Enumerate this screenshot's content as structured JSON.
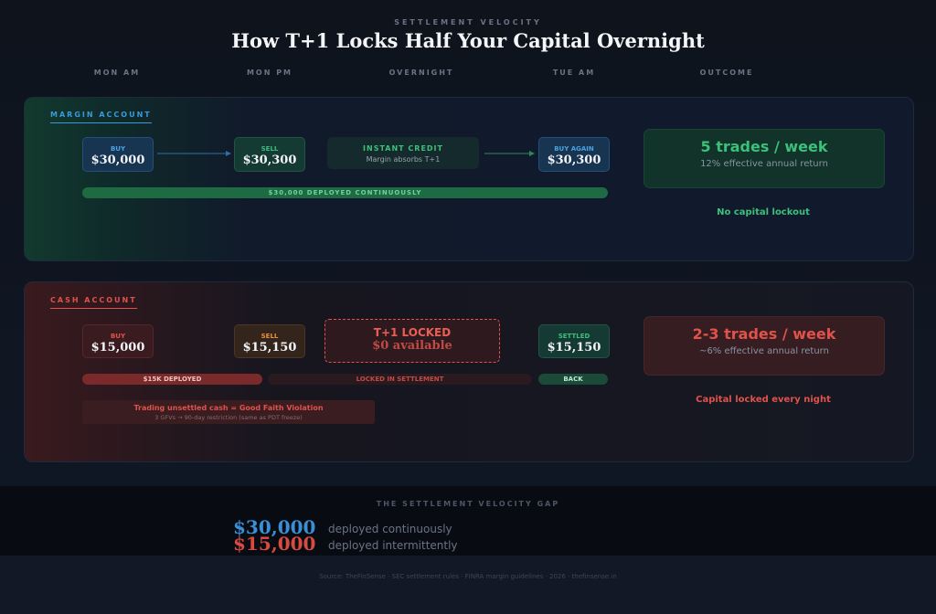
{
  "header": {
    "eyebrow": "SETTLEMENT VELOCITY",
    "title": "How T+1 Locks Half Your Capital Overnight"
  },
  "columns": [
    "MON AM",
    "MON PM",
    "OVERNIGHT",
    "TUE AM",
    "OUTCOME"
  ],
  "margin": {
    "label": "MARGIN ACCOUNT",
    "steps": [
      {
        "label": "BUY",
        "amount": "$30,000"
      },
      {
        "label": "SELL",
        "amount": "$30,300"
      },
      {
        "label": "INSTANT CREDIT",
        "detail": "Margin absorbs T+1"
      },
      {
        "label": "BUY AGAIN",
        "amount": "$30,300"
      }
    ],
    "bar": "$30,000 DEPLOYED CONTINUOUSLY",
    "outcome": {
      "headline": "5 trades / week",
      "detail": "12% effective annual return"
    },
    "note": "No capital lockout"
  },
  "cash": {
    "label": "CASH ACCOUNT",
    "steps": [
      {
        "label": "BUY",
        "amount": "$15,000"
      },
      {
        "label": "SELL",
        "amount": "$15,150"
      },
      {
        "label": "T+1 LOCKED",
        "amount": "$0 available"
      },
      {
        "label": "SETTLED",
        "amount": "$15,150"
      }
    ],
    "bars": [
      "$15K DEPLOYED",
      "LOCKED IN SETTLEMENT",
      "BACK"
    ],
    "warning": {
      "title": "Trading unsettled cash = Good Faith Violation",
      "detail": "3 GFVs → 90-day restriction (same as PDT freeze)"
    },
    "outcome": {
      "headline": "2-3 trades / week",
      "detail": "~6% effective annual return"
    },
    "note": "Capital locked every night"
  },
  "gap": {
    "title": "THE SETTLEMENT VELOCITY GAP",
    "rows": [
      {
        "amount": "$30,000",
        "text": "deployed continuously"
      },
      {
        "amount": "$15,000",
        "text": "deployed intermittently"
      }
    ]
  },
  "footer": {
    "source": "Source: TheFinSense · SEC settlement rules · FINRA margin guidelines · 2026 · thefinsense.in"
  }
}
